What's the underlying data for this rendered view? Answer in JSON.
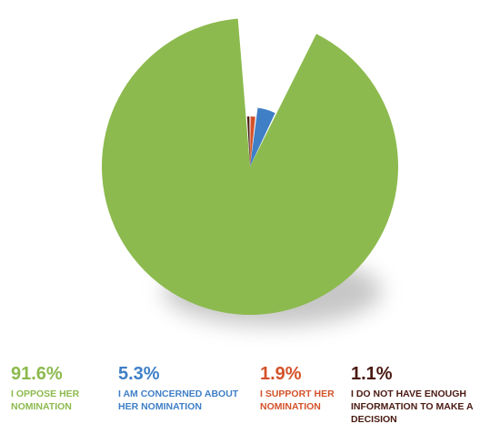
{
  "chart_data": {
    "type": "pie",
    "categories": [
      "I OPPOSE HER NOMINATION",
      "I AM CONCERNED ABOUT HER NOMINATION",
      "I SUPPORT HER NOMINATION",
      "I DO NOT HAVE ENOUGH INFORMATION TO MAKE A DECISION"
    ],
    "values": [
      91.6,
      5.3,
      1.9,
      1.1
    ],
    "value_labels": [
      "91.6%",
      "5.3%",
      "1.9%",
      "1.1%"
    ],
    "colors": [
      "#8cba4e",
      "#3f7fc6",
      "#d4522a",
      "#4a1a12"
    ]
  }
}
